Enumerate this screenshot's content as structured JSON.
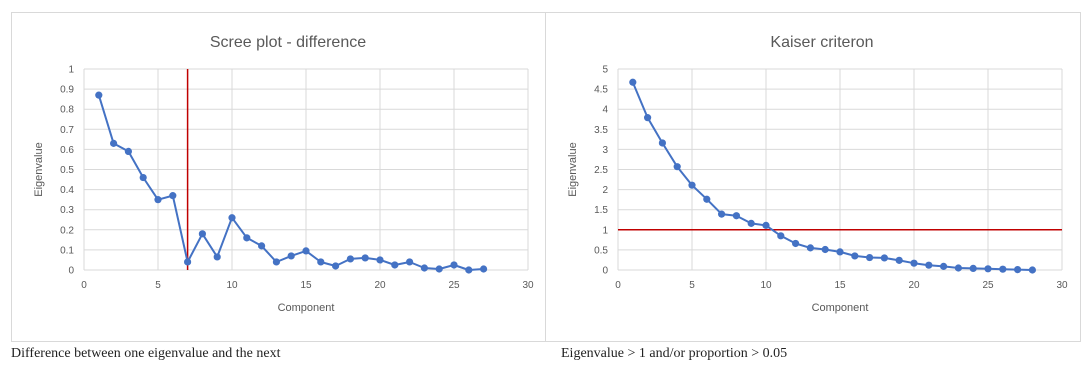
{
  "chart_data": [
    {
      "type": "line",
      "title": "Scree plot - difference",
      "xlabel": "Component",
      "ylabel": "Eigenvalue",
      "xlim": [
        0,
        30
      ],
      "ylim": [
        0,
        1
      ],
      "xticks": [
        0,
        5,
        10,
        15,
        20,
        25,
        30
      ],
      "yticks": [
        0,
        0.1,
        0.2,
        0.3,
        0.4,
        0.5,
        0.6,
        0.7,
        0.8,
        0.9,
        1
      ],
      "grid": true,
      "series": [
        {
          "color": "#4472c4",
          "x": [
            1,
            2,
            3,
            4,
            5,
            6,
            7,
            8,
            9,
            10,
            11,
            12,
            13,
            14,
            15,
            16,
            17,
            18,
            19,
            20,
            21,
            22,
            23,
            24,
            25,
            26,
            27
          ],
          "values": [
            0.87,
            0.63,
            0.59,
            0.46,
            0.35,
            0.37,
            0.04,
            0.18,
            0.065,
            0.26,
            0.16,
            0.12,
            0.04,
            0.07,
            0.095,
            0.04,
            0.02,
            0.055,
            0.06,
            0.05,
            0.025,
            0.04,
            0.01,
            0.005,
            0.025,
            0.0,
            0.005
          ]
        }
      ],
      "reference_line": {
        "orientation": "vertical",
        "value": 7,
        "color": "#c00000"
      }
    },
    {
      "type": "line",
      "title": "Kaiser criteron",
      "xlabel": "Component",
      "ylabel": "Eigenvalue",
      "xlim": [
        0,
        30
      ],
      "ylim": [
        0,
        5
      ],
      "xticks": [
        0,
        5,
        10,
        15,
        20,
        25,
        30
      ],
      "yticks": [
        0,
        0.5,
        1,
        1.5,
        2,
        2.5,
        3,
        3.5,
        4,
        4.5,
        5
      ],
      "grid": true,
      "series": [
        {
          "color": "#4472c4",
          "x": [
            1,
            2,
            3,
            4,
            5,
            6,
            7,
            8,
            9,
            10,
            11,
            12,
            13,
            14,
            15,
            16,
            17,
            18,
            19,
            20,
            21,
            22,
            23,
            24,
            25,
            26,
            27,
            28
          ],
          "values": [
            4.67,
            3.79,
            3.16,
            2.57,
            2.11,
            1.76,
            1.39,
            1.35,
            1.16,
            1.11,
            0.85,
            0.66,
            0.55,
            0.51,
            0.45,
            0.35,
            0.31,
            0.3,
            0.24,
            0.17,
            0.12,
            0.09,
            0.05,
            0.04,
            0.03,
            0.02,
            0.01,
            0.0
          ]
        }
      ],
      "reference_line": {
        "orientation": "horizontal",
        "value": 1,
        "color": "#c00000"
      }
    }
  ],
  "captions": {
    "left": "Difference between one eigenvalue and the next",
    "right": "Eigenvalue > 1 and/or proportion > 0.05"
  }
}
